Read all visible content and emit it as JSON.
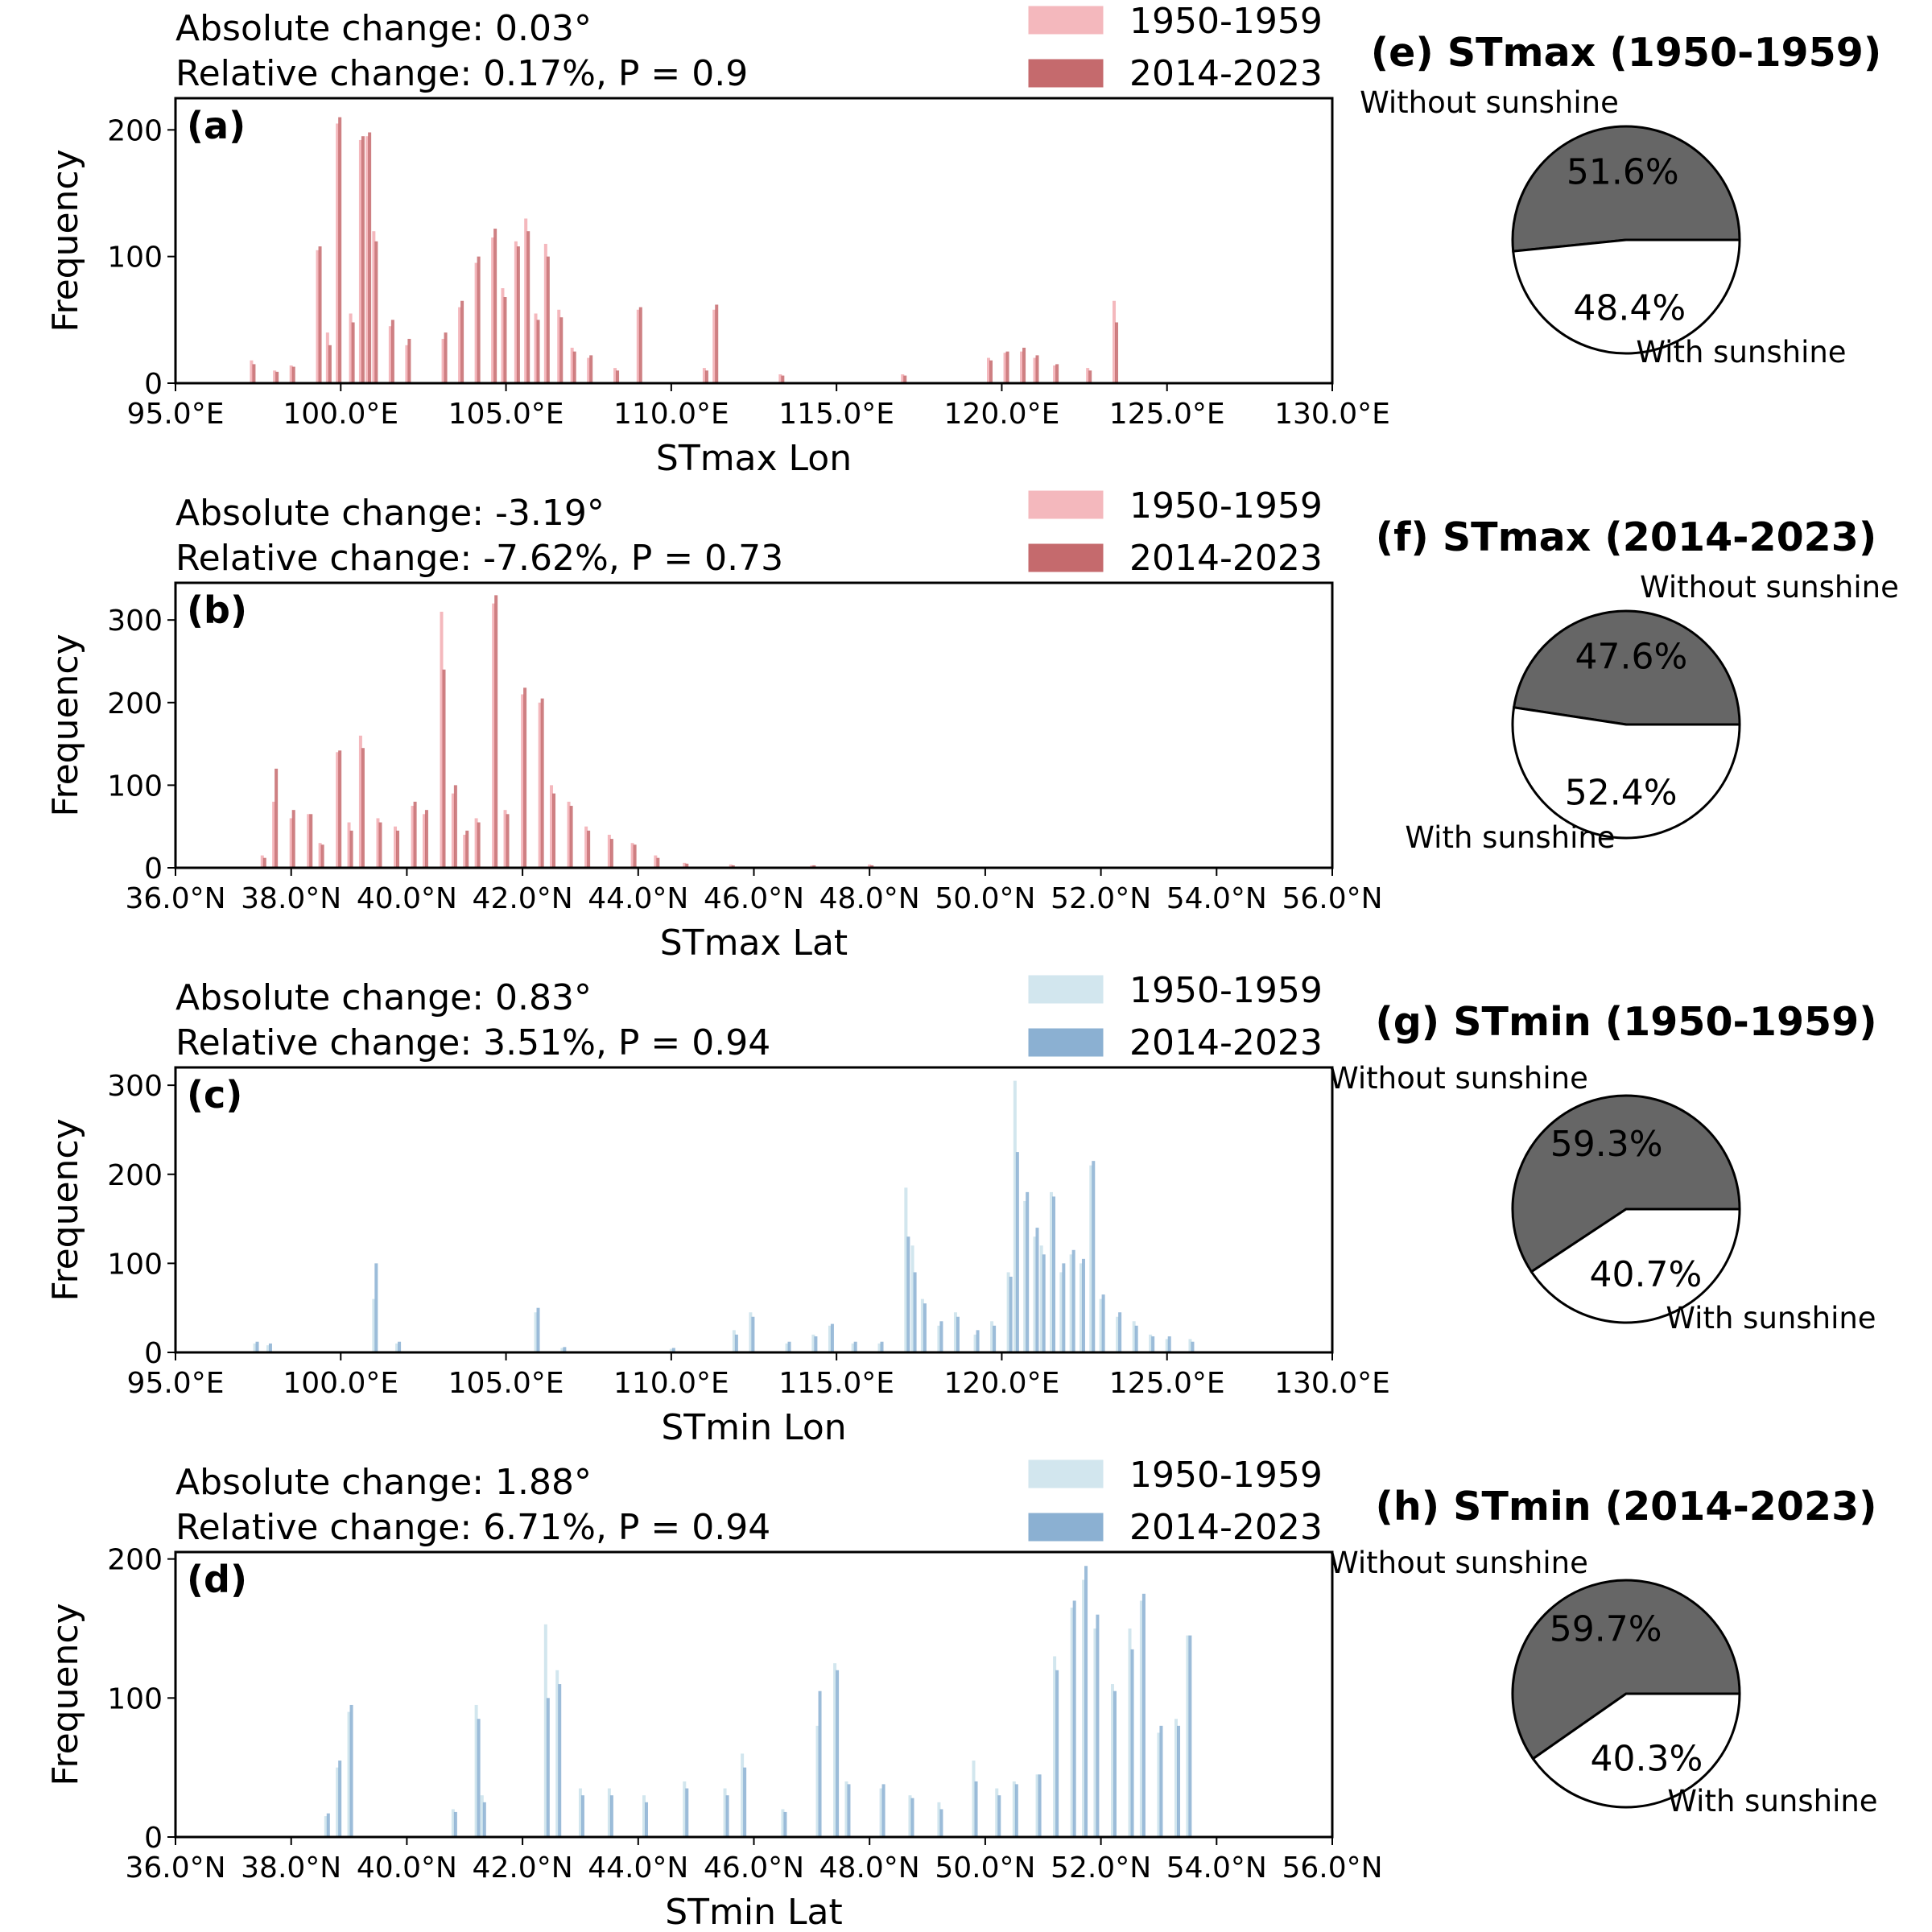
{
  "colors": {
    "red_1950": "#f4b8bd",
    "red_2014": "#c56a6d",
    "blue_1950": "#d2e6ee",
    "blue_2014": "#8bb0d2",
    "pie_without": "#666666",
    "pie_with": "#ffffff"
  },
  "legend": {
    "period1": "1950-1959",
    "period2": "2014-2023"
  },
  "pie_labels": {
    "without": "Without sunshine",
    "with": "With sunshine"
  },
  "chart_data": [
    {
      "id": "a",
      "type": "bar",
      "panel_label": "(a)",
      "color_scheme": "red",
      "xlabel": "STmax Lon",
      "ylabel": "Frequency",
      "xlim": [
        95,
        130
      ],
      "ylim": [
        0,
        225
      ],
      "xticks": [
        "95.0°E",
        "100.0°E",
        "105.0°E",
        "110.0°E",
        "115.0°E",
        "120.0°E",
        "125.0°E",
        "130.0°E"
      ],
      "yticks": [
        "0",
        "100",
        "200"
      ],
      "ann1": "Absolute change: 0.03°",
      "ann2": "Relative change: 0.17%, P = 0.9",
      "series": [
        {
          "name": "1950-1959",
          "x": [
            97.3,
            98.0,
            98.5,
            99.3,
            99.6,
            99.9,
            100.3,
            100.6,
            100.8,
            101.0,
            101.5,
            102.0,
            103.1,
            103.6,
            104.1,
            104.6,
            104.9,
            105.3,
            105.6,
            105.9,
            106.2,
            106.6,
            107.0,
            107.5,
            108.3,
            109.0,
            111.0,
            111.3,
            113.3,
            117.0,
            119.6,
            120.1,
            120.6,
            121.0,
            121.6,
            122.6,
            123.4
          ],
          "y": [
            18,
            10,
            14,
            105,
            40,
            205,
            55,
            192,
            195,
            120,
            45,
            30,
            35,
            60,
            95,
            115,
            75,
            112,
            130,
            55,
            110,
            58,
            28,
            20,
            12,
            58,
            12,
            58,
            7,
            7,
            20,
            24,
            25,
            20,
            14,
            12,
            65
          ]
        },
        {
          "name": "2014-2023",
          "x": [
            97.3,
            98.0,
            98.5,
            99.3,
            99.6,
            99.9,
            100.3,
            100.6,
            100.8,
            101.0,
            101.5,
            102.0,
            103.1,
            103.6,
            104.1,
            104.6,
            104.9,
            105.3,
            105.6,
            105.9,
            106.2,
            106.6,
            107.0,
            107.5,
            108.3,
            109.0,
            111.0,
            111.3,
            113.3,
            117.0,
            119.6,
            120.1,
            120.6,
            121.0,
            121.6,
            122.6,
            123.4
          ],
          "y": [
            15,
            9,
            13,
            108,
            30,
            210,
            48,
            195,
            198,
            112,
            50,
            35,
            40,
            65,
            100,
            122,
            68,
            108,
            120,
            50,
            100,
            52,
            25,
            22,
            10,
            60,
            10,
            62,
            6,
            6,
            18,
            25,
            28,
            22,
            15,
            10,
            48
          ]
        }
      ]
    },
    {
      "id": "b",
      "type": "bar",
      "panel_label": "(b)",
      "color_scheme": "red",
      "xlabel": "STmax Lat",
      "ylabel": "Frequency",
      "xlim": [
        36,
        56
      ],
      "ylim": [
        0,
        345
      ],
      "xticks": [
        "36.0°N",
        "38.0°N",
        "40.0°N",
        "42.0°N",
        "44.0°N",
        "46.0°N",
        "48.0°N",
        "50.0°N",
        "52.0°N",
        "54.0°N",
        "56.0°N"
      ],
      "yticks": [
        "0",
        "100",
        "200",
        "300"
      ],
      "ann1": "Absolute change: -3.19°",
      "ann2": "Relative change: -7.62%, P = 0.73",
      "series": [
        {
          "name": "1950-1959",
          "x": [
            37.5,
            37.7,
            38.0,
            38.3,
            38.5,
            38.8,
            39.0,
            39.2,
            39.5,
            39.8,
            40.1,
            40.3,
            40.6,
            40.8,
            41.0,
            41.2,
            41.5,
            41.7,
            42.0,
            42.3,
            42.5,
            42.8,
            43.1,
            43.5,
            43.9,
            44.3,
            44.8,
            45.6,
            47.0,
            48.0
          ],
          "y": [
            15,
            80,
            60,
            65,
            30,
            140,
            55,
            160,
            60,
            50,
            75,
            65,
            310,
            90,
            40,
            60,
            320,
            70,
            210,
            200,
            100,
            80,
            50,
            40,
            30,
            15,
            6,
            4,
            3,
            4
          ]
        },
        {
          "name": "2014-2023",
          "x": [
            37.5,
            37.7,
            38.0,
            38.3,
            38.5,
            38.8,
            39.0,
            39.2,
            39.5,
            39.8,
            40.1,
            40.3,
            40.6,
            40.8,
            41.0,
            41.2,
            41.5,
            41.7,
            42.0,
            42.3,
            42.5,
            42.8,
            43.1,
            43.5,
            43.9,
            44.3,
            44.8,
            45.6,
            47.0,
            48.0
          ],
          "y": [
            12,
            120,
            70,
            65,
            28,
            142,
            45,
            145,
            55,
            45,
            80,
            70,
            240,
            100,
            45,
            55,
            330,
            65,
            218,
            205,
            90,
            75,
            45,
            35,
            28,
            12,
            5,
            3,
            3,
            3
          ]
        }
      ]
    },
    {
      "id": "c",
      "type": "bar",
      "panel_label": "(c)",
      "color_scheme": "blue",
      "xlabel": "STmin Lon",
      "ylabel": "Frequency",
      "xlim": [
        95,
        130
      ],
      "ylim": [
        0,
        320
      ],
      "xticks": [
        "95.0°E",
        "100.0°E",
        "105.0°E",
        "110.0°E",
        "115.0°E",
        "120.0°E",
        "125.0°E",
        "130.0°E"
      ],
      "yticks": [
        "0",
        "100",
        "200",
        "300"
      ],
      "ann1": "Absolute change: 0.83°",
      "ann2": "Relative change: 3.51%, P = 0.94",
      "series": [
        {
          "name": "1950-1959",
          "x": [
            97.4,
            97.8,
            101.0,
            101.7,
            105.9,
            106.7,
            110.0,
            111.9,
            112.4,
            113.5,
            114.3,
            114.8,
            115.5,
            116.3,
            117.1,
            117.3,
            117.6,
            118.1,
            118.6,
            119.2,
            119.7,
            120.2,
            120.4,
            120.7,
            121.0,
            121.2,
            121.5,
            121.8,
            122.1,
            122.4,
            122.7,
            123.0,
            123.5,
            124.0,
            124.5,
            125.0,
            125.7
          ],
          "y": [
            10,
            8,
            60,
            10,
            45,
            5,
            4,
            25,
            45,
            10,
            20,
            30,
            10,
            10,
            185,
            120,
            60,
            30,
            45,
            20,
            35,
            90,
            305,
            170,
            130,
            120,
            180,
            90,
            110,
            100,
            210,
            60,
            40,
            35,
            20,
            15,
            15
          ]
        },
        {
          "name": "2014-2023",
          "x": [
            97.4,
            97.8,
            101.0,
            101.7,
            105.9,
            106.7,
            110.0,
            111.9,
            112.4,
            113.5,
            114.3,
            114.8,
            115.5,
            116.3,
            117.1,
            117.3,
            117.6,
            118.1,
            118.6,
            119.2,
            119.7,
            120.2,
            120.4,
            120.7,
            121.0,
            121.2,
            121.5,
            121.8,
            122.1,
            122.4,
            122.7,
            123.0,
            123.5,
            124.0,
            124.5,
            125.0,
            125.7
          ],
          "y": [
            12,
            10,
            100,
            12,
            50,
            6,
            5,
            20,
            40,
            12,
            18,
            32,
            12,
            12,
            130,
            90,
            55,
            35,
            40,
            25,
            30,
            85,
            225,
            180,
            140,
            110,
            175,
            100,
            115,
            105,
            215,
            65,
            45,
            30,
            18,
            18,
            12
          ]
        }
      ]
    },
    {
      "id": "d",
      "type": "bar",
      "panel_label": "(d)",
      "color_scheme": "blue",
      "xlabel": "STmin Lat",
      "ylabel": "Frequency",
      "xlim": [
        36,
        56
      ],
      "ylim": [
        0,
        205
      ],
      "xticks": [
        "36.0°N",
        "38.0°N",
        "40.0°N",
        "42.0°N",
        "44.0°N",
        "46.0°N",
        "48.0°N",
        "50.0°N",
        "52.0°N",
        "54.0°N",
        "56.0°N"
      ],
      "yticks": [
        "0",
        "100",
        "200"
      ],
      "ann1": "Absolute change: 1.88°",
      "ann2": "Relative change: 6.71%, P = 0.94",
      "series": [
        {
          "name": "1950-1959",
          "x": [
            38.6,
            38.8,
            39.0,
            40.8,
            41.2,
            41.3,
            42.4,
            42.6,
            43.0,
            43.5,
            44.1,
            44.8,
            45.5,
            45.8,
            46.5,
            47.1,
            47.4,
            47.6,
            48.2,
            48.7,
            49.2,
            49.8,
            50.2,
            50.5,
            50.9,
            51.2,
            51.5,
            51.7,
            51.9,
            52.2,
            52.5,
            52.7,
            53.0,
            53.3,
            53.5
          ],
          "y": [
            15,
            50,
            90,
            20,
            95,
            30,
            153,
            120,
            35,
            35,
            30,
            40,
            35,
            60,
            20,
            80,
            125,
            40,
            35,
            30,
            25,
            55,
            35,
            40,
            45,
            130,
            165,
            185,
            150,
            110,
            150,
            170,
            75,
            85,
            145
          ]
        },
        {
          "name": "2014-2023",
          "x": [
            38.6,
            38.8,
            39.0,
            40.8,
            41.2,
            41.3,
            42.4,
            42.6,
            43.0,
            43.5,
            44.1,
            44.8,
            45.5,
            45.8,
            46.5,
            47.1,
            47.4,
            47.6,
            48.2,
            48.7,
            49.2,
            49.8,
            50.2,
            50.5,
            50.9,
            51.2,
            51.5,
            51.7,
            51.9,
            52.2,
            52.5,
            52.7,
            53.0,
            53.3,
            53.5
          ],
          "y": [
            17,
            55,
            95,
            18,
            85,
            25,
            100,
            110,
            30,
            30,
            25,
            35,
            30,
            50,
            18,
            105,
            120,
            38,
            38,
            28,
            20,
            40,
            30,
            38,
            45,
            120,
            170,
            195,
            160,
            105,
            135,
            175,
            80,
            80,
            145
          ]
        }
      ]
    },
    {
      "id": "e",
      "type": "pie",
      "title": "(e) STmax (1950-1959)",
      "labels": [
        "Without sunshine",
        "With sunshine"
      ],
      "values": [
        51.6,
        48.4
      ],
      "value_labels": [
        "51.6%",
        "48.4%"
      ]
    },
    {
      "id": "f",
      "type": "pie",
      "title": "(f) STmax (2014-2023)",
      "labels": [
        "Without sunshine",
        "With sunshine"
      ],
      "values": [
        47.6,
        52.4
      ],
      "value_labels": [
        "47.6%",
        "52.4%"
      ]
    },
    {
      "id": "g",
      "type": "pie",
      "title": "(g) STmin (1950-1959)",
      "labels": [
        "Without sunshine",
        "With sunshine"
      ],
      "values": [
        59.3,
        40.7
      ],
      "value_labels": [
        "59.3%",
        "40.7%"
      ]
    },
    {
      "id": "h",
      "type": "pie",
      "title": "(h) STmin (2014-2023)",
      "labels": [
        "Without sunshine",
        "With sunshine"
      ],
      "values": [
        59.7,
        40.3
      ],
      "value_labels": [
        "59.7%",
        "40.3%"
      ]
    }
  ]
}
